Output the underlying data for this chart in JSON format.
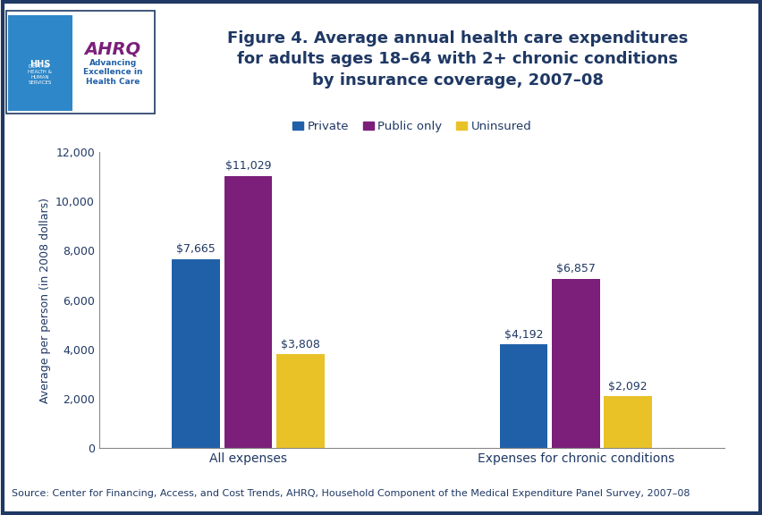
{
  "title": "Figure 4. Average annual health care expenditures\nfor adults ages 18–64 with 2+ chronic conditions\nby insurance coverage, 2007–08",
  "categories": [
    "All expenses",
    "Expenses for chronic conditions"
  ],
  "series": [
    {
      "name": "Private",
      "values": [
        7665,
        4192
      ],
      "color": "#2060A8"
    },
    {
      "name": "Public only",
      "values": [
        11029,
        6857
      ],
      "color": "#7B1F7A"
    },
    {
      "name": "Uninsured",
      "values": [
        3808,
        2092
      ],
      "color": "#E8C227"
    }
  ],
  "bar_labels": [
    [
      "$7,665",
      "$11,029",
      "$3,808"
    ],
    [
      "$4,192",
      "$6,857",
      "$2,092"
    ]
  ],
  "ylabel": "Average per person (in 2008 dollars)",
  "ylim": [
    0,
    12000
  ],
  "yticks": [
    0,
    2000,
    4000,
    6000,
    8000,
    10000,
    12000
  ],
  "ytick_labels": [
    "0",
    "2,000",
    "4,000",
    "6,000",
    "8,000",
    "10,000",
    "12,000"
  ],
  "footer": "Source: Center for Financing, Access, and Cost Trends, AHRQ, Household Component of the Medical Expenditure Panel Survey, 2007–08",
  "title_color": "#1F3864",
  "axis_color": "#1F3864",
  "footer_color": "#1F3864",
  "background_color": "#FFFFFF",
  "border_color": "#1F3864",
  "separator_line_color": "#1F3864",
  "title_fontsize": 13,
  "legend_fontsize": 9.5,
  "ylabel_fontsize": 9,
  "bar_label_fontsize": 9,
  "footer_fontsize": 8,
  "group_positions": [
    0.28,
    0.72
  ],
  "bar_width": 0.07,
  "bar_offsets": [
    -0.07,
    0.0,
    0.07
  ]
}
